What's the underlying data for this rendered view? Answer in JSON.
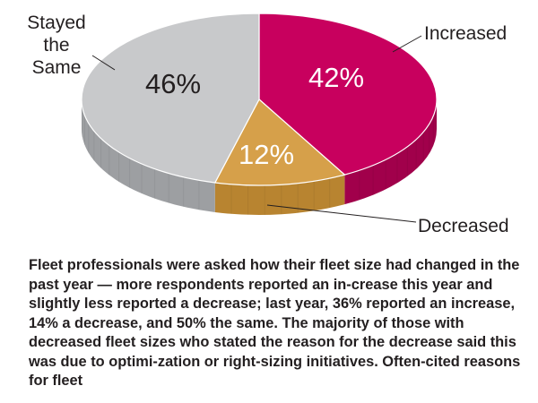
{
  "chart_data": {
    "type": "pie",
    "style": "3d",
    "slices": [
      {
        "label": "Increased",
        "value": 42,
        "display": "42%",
        "color": "#c8005e",
        "side_color": "#a1004b",
        "label_color": "#ffffff"
      },
      {
        "label": "Decreased",
        "value": 12,
        "display": "12%",
        "color": "#d6a04a",
        "side_color": "#b88430",
        "label_color": "#ffffff"
      },
      {
        "label": "Stayed the Same",
        "label_lines": [
          "Stayed",
          "the",
          "Same"
        ],
        "value": 46,
        "display": "46%",
        "color": "#c8c9cb",
        "side_color": "#9d9fa2",
        "label_color": "#231f20"
      }
    ]
  },
  "caption": "Fleet professionals were asked how their fleet size had changed in the past year — more respondents reported an in-crease this year and slightly less reported a decrease; last year, 36% reported an increase, 14% a decrease, and 50% the same. The majority of those with decreased fleet sizes who stated the reason for the decrease said this was due to optimi-zation or right-sizing initiatives. Often-cited reasons for fleet"
}
